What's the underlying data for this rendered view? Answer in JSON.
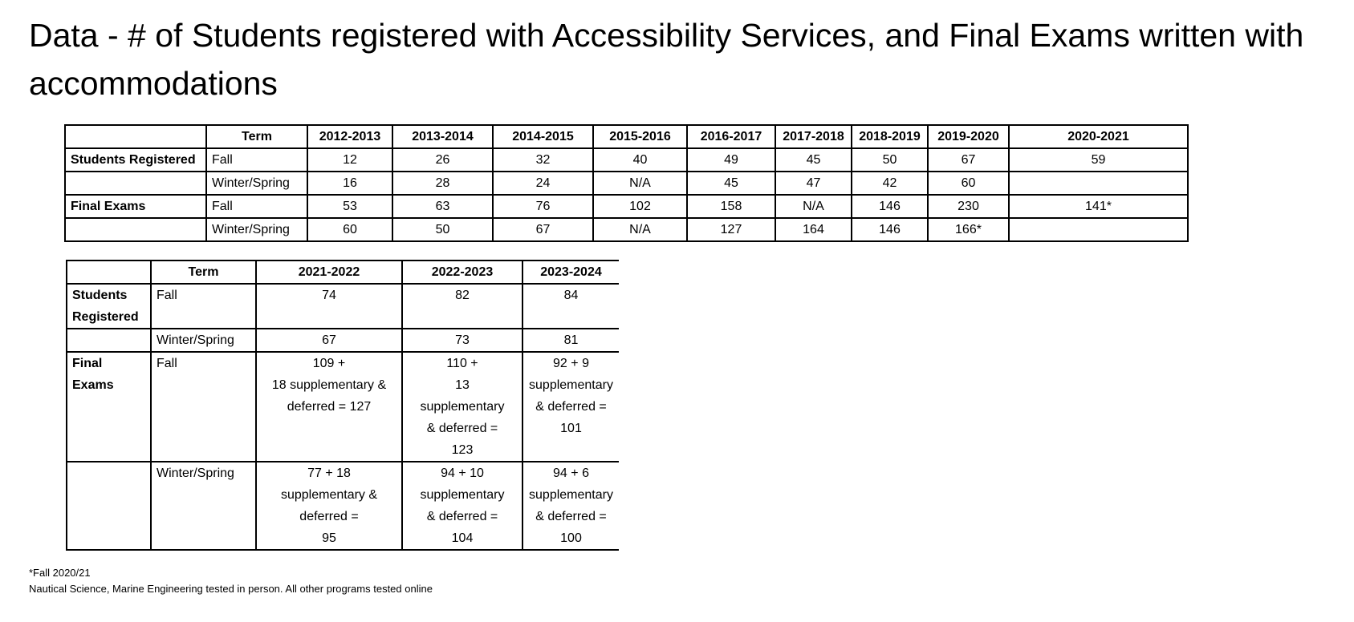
{
  "title": "Data - # of Students registered with Accessibility Services, and Final Exams written with accommodations",
  "table1": {
    "term_header": "Term",
    "years": [
      "2012-2013",
      "2013-2014",
      "2014-2015",
      "2015-2016",
      "2016-2017",
      "2017-2018",
      "2018-2019",
      "2019-2020",
      "2020-2021"
    ],
    "rows": [
      {
        "group": "Students Registered",
        "term": "Fall",
        "values": [
          "12",
          "26",
          "32",
          "40",
          "49",
          "45",
          "50",
          "67",
          "59"
        ]
      },
      {
        "group": "",
        "term": "Winter/Spring",
        "values": [
          "16",
          "28",
          "24",
          "N/A",
          "45",
          "47",
          "42",
          "60",
          ""
        ]
      },
      {
        "group": "Final Exams",
        "term": "Fall",
        "values": [
          "53",
          "63",
          "76",
          "102",
          "158",
          "N/A",
          "146",
          "230",
          "141*"
        ]
      },
      {
        "group": "",
        "term": "Winter/Spring",
        "values": [
          "60",
          "50",
          "67",
          "N/A",
          "127",
          "164",
          "146",
          "166*",
          ""
        ]
      }
    ]
  },
  "table2": {
    "term_header": "Term",
    "years": [
      "2021-2022",
      "2022-2023",
      "2023-2024"
    ],
    "rows": [
      {
        "group": [
          "Students",
          "Registered"
        ],
        "term": "Fall",
        "values": [
          [
            "74"
          ],
          [
            "82"
          ],
          [
            "84"
          ]
        ]
      },
      {
        "group": [
          ""
        ],
        "term": "Winter/Spring",
        "values": [
          [
            "67"
          ],
          [
            "73"
          ],
          [
            "81"
          ]
        ]
      },
      {
        "group": [
          "Final",
          "Exams"
        ],
        "term": "Fall",
        "values": [
          [
            "109 +",
            "18 supplementary &",
            "deferred = 127"
          ],
          [
            "110 +",
            "13",
            "supplementary",
            "& deferred  =",
            "123"
          ],
          [
            "92 + 9",
            "supplementary",
            "& deferred  =",
            "101"
          ]
        ]
      },
      {
        "group": [
          ""
        ],
        "term": "Winter/Spring",
        "values": [
          [
            "77 + 18",
            "supplementary &",
            "deferred  =",
            "95"
          ],
          [
            "94 + 10",
            "supplementary",
            "& deferred  =",
            "104"
          ],
          [
            "94 + 6",
            "supplementary",
            "& deferred  =",
            "100"
          ]
        ]
      }
    ]
  },
  "footnotes": {
    "line1": "*Fall 2020/21",
    "line2": "Nautical Science, Marine Engineering tested in person. All other programs tested online"
  }
}
